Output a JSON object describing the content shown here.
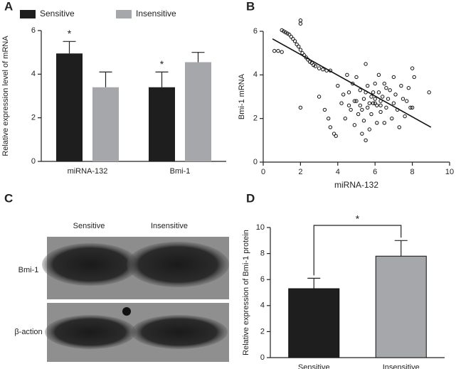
{
  "chart_data": [
    {
      "type": "bar",
      "panel": "A",
      "y_label": "Relative expression level of mRNA",
      "categories": [
        "miRNA-132",
        "Bmi-1"
      ],
      "series": [
        {
          "name": "Sensitive",
          "color": "#1e1e1e",
          "values": [
            4.95,
            3.4
          ],
          "errors": [
            0.55,
            0.7
          ],
          "significance": [
            "*",
            "*"
          ]
        },
        {
          "name": "Insensitive",
          "color": "#a5a7aa",
          "values": [
            3.4,
            4.55
          ],
          "errors": [
            0.7,
            0.45
          ]
        }
      ],
      "ylim": [
        0,
        6
      ],
      "yticks": [
        0,
        2,
        4,
        6
      ]
    },
    {
      "type": "scatter",
      "panel": "B",
      "x_label": "miRNA-132",
      "y_label": "Bmi-1 mRNA",
      "x": [
        1.0,
        1.1,
        1.2,
        1.3,
        1.4,
        1.5,
        1.6,
        1.7,
        1.8,
        1.9,
        2.0,
        2.1,
        2.2,
        2.3,
        2.4,
        2.5,
        2.6,
        2.7,
        2.8,
        3.0,
        3.2,
        3.4,
        3.6,
        0.6,
        0.8,
        1.0,
        2.0,
        2.0,
        2.0,
        3.0,
        3.3,
        3.6,
        3.8,
        3.9,
        3.5,
        4.0,
        4.2,
        4.3,
        4.4,
        4.5,
        4.6,
        4.7,
        4.8,
        4.9,
        5.0,
        5.0,
        5.1,
        5.2,
        5.3,
        5.4,
        5.4,
        5.5,
        5.5,
        5.6,
        5.6,
        5.7,
        5.8,
        5.8,
        5.9,
        6.0,
        6.0,
        6.1,
        6.1,
        6.2,
        6.2,
        6.3,
        6.3,
        6.4,
        6.5,
        6.5,
        6.6,
        6.7,
        6.8,
        6.9,
        7.0,
        7.0,
        7.1,
        7.2,
        7.3,
        7.4,
        7.5,
        7.6,
        7.7,
        7.8,
        7.9,
        8.0,
        8.0,
        8.1,
        8.9,
        4.6,
        5.2,
        5.7,
        6.0,
        6.3,
        5.9,
        5.5,
        4.9,
        6.6,
        5.3
      ],
      "values": [
        6.05,
        6.0,
        5.95,
        5.9,
        5.85,
        5.75,
        5.65,
        5.55,
        5.4,
        5.3,
        5.15,
        5.0,
        4.9,
        4.8,
        4.7,
        4.6,
        4.55,
        4.45,
        4.4,
        4.3,
        4.25,
        4.2,
        4.2,
        5.1,
        5.1,
        5.05,
        6.5,
        6.35,
        2.5,
        3.0,
        2.4,
        1.6,
        1.3,
        1.2,
        2.0,
        3.5,
        2.7,
        3.1,
        2.0,
        4.0,
        3.2,
        2.4,
        3.6,
        1.7,
        2.8,
        3.9,
        2.2,
        3.3,
        1.3,
        1.9,
        2.9,
        4.5,
        1.0,
        3.5,
        2.5,
        1.5,
        3.0,
        2.2,
        2.7,
        3.6,
        2.9,
        1.8,
        2.6,
        3.2,
        4.0,
        2.8,
        2.3,
        3.0,
        1.8,
        3.6,
        2.5,
        2.9,
        3.3,
        2.0,
        2.7,
        3.9,
        3.1,
        2.4,
        1.6,
        3.5,
        2.9,
        2.1,
        2.8,
        3.4,
        2.5,
        4.3,
        2.5,
        3.9,
        3.2,
        2.6,
        2.6,
        2.7,
        2.7,
        2.6,
        3.2,
        3.2,
        2.8,
        3.4,
        2.4
      ],
      "trendline": {
        "x": [
          0.5,
          9.0
        ],
        "y": [
          5.65,
          1.6
        ]
      },
      "xlim": [
        0,
        10
      ],
      "xticks": [
        0,
        2,
        4,
        6,
        8,
        10
      ],
      "ylim": [
        0,
        6
      ],
      "yticks": [
        0,
        2,
        4,
        6
      ]
    },
    {
      "type": "bar",
      "panel": "D",
      "y_label": "Relative expression of Bmi-1 protein",
      "categories": [
        "Sensitive",
        "Insensitive"
      ],
      "values": [
        5.3,
        7.8
      ],
      "errors": [
        0.8,
        1.2
      ],
      "colors": [
        "#1e1e1e",
        "#a5a7aa"
      ],
      "bracket": "*",
      "ylim": [
        0,
        10
      ],
      "yticks": [
        0,
        2,
        4,
        6,
        8,
        10
      ]
    }
  ],
  "blot": {
    "panel": "C",
    "lanes": [
      "Sensitive",
      "Insensitive"
    ],
    "bands": [
      "Bmi-1",
      "β-action"
    ]
  }
}
